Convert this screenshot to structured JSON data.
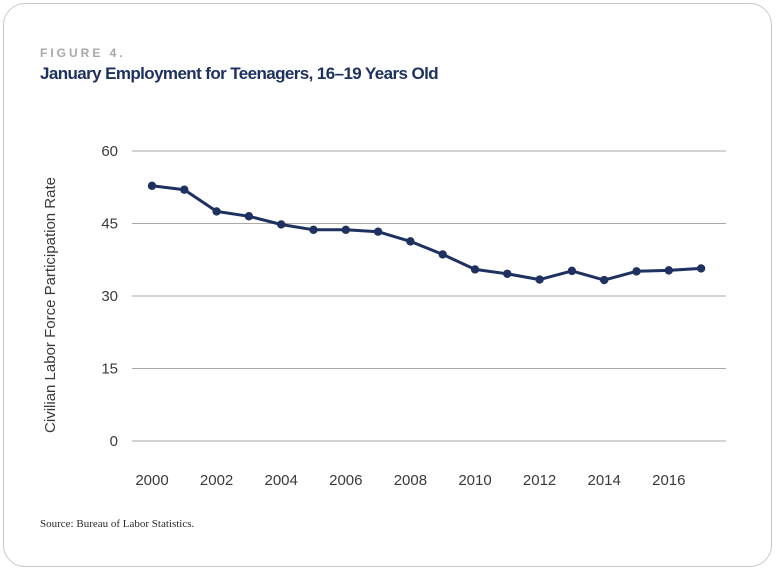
{
  "figure": {
    "label": "FIGURE 4.",
    "title": "January Employment for Teenagers, 16–19 Years Old",
    "source": "Source: Bureau of Labor Statistics."
  },
  "colors": {
    "series": "#1f3160",
    "grid": "#a9a9a9",
    "label": "#a8a8a8"
  },
  "chart_data": {
    "type": "line",
    "title": "January Employment for Teenagers, 16–19 Years Old",
    "xlabel": "",
    "ylabel": "Civilian Labor Force Participation Rate",
    "ylim": [
      0,
      60
    ],
    "yticks": [
      "0",
      "15",
      "30",
      "45",
      "60"
    ],
    "xticks": [
      "2000",
      "2002",
      "2004",
      "2006",
      "2008",
      "2010",
      "2012",
      "2014",
      "2016"
    ],
    "grid": true,
    "legend": "none",
    "x": [
      2000,
      2001,
      2002,
      2003,
      2004,
      2005,
      2006,
      2007,
      2008,
      2009,
      2010,
      2011,
      2012,
      2013,
      2014,
      2015,
      2016,
      2017
    ],
    "series": [
      {
        "values": [
          52.8,
          52.0,
          47.5,
          46.5,
          44.8,
          43.7,
          43.7,
          43.3,
          41.3,
          38.6,
          35.5,
          34.6,
          33.4,
          35.2,
          33.3,
          35.1,
          35.3,
          35.7
        ]
      }
    ]
  }
}
